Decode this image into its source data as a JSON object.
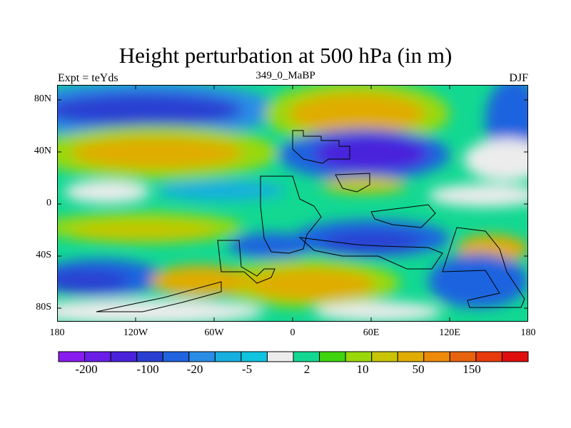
{
  "title": "Height perturbation at 500 hPa (in m)",
  "subtitle_left": "Expt = teYds",
  "subtitle_center": "349_0_MaBP",
  "subtitle_right": "DJF",
  "y_ticks": [
    "80N",
    "40N",
    "0",
    "40S",
    "80S"
  ],
  "x_ticks": [
    "180",
    "120W",
    "60W",
    "0",
    "60E",
    "120E",
    "180"
  ],
  "colorbar": {
    "colors": [
      "#8a1cf0",
      "#6a1ee8",
      "#4a22dc",
      "#2a3fd2",
      "#1f63df",
      "#2b8ce6",
      "#17aee0",
      "#10c4e0",
      "#ececec",
      "#12d892",
      "#3ed40e",
      "#9ad80a",
      "#c8c404",
      "#e0ac02",
      "#ee8a0a",
      "#e8620e",
      "#e83a0c",
      "#e00e0e"
    ],
    "labels": [
      "-200",
      "-100",
      "-20",
      "-5",
      "2",
      "10",
      "50",
      "150"
    ]
  }
}
